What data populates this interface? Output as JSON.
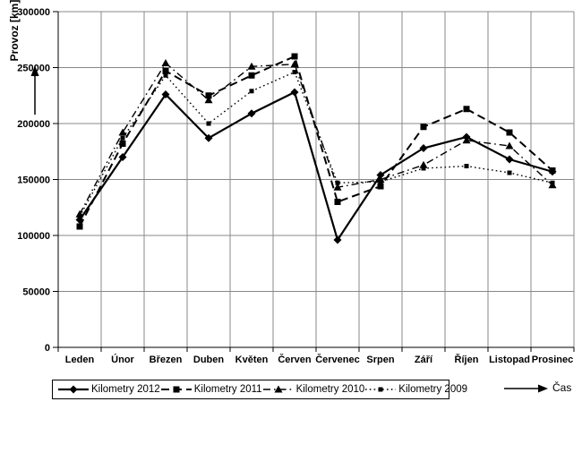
{
  "y_axis": {
    "label": "Provoz [km]"
  },
  "x_axis": {
    "label": "Čas"
  },
  "chart_data": {
    "type": "line",
    "title": "",
    "xlabel": "Čas",
    "ylabel": "Provoz [km]",
    "ylim": [
      0,
      300000
    ],
    "ytick_step": 50000,
    "grid": true,
    "legend_position": "bottom",
    "categories": [
      "Leden",
      "Únor",
      "Březen",
      "Duben",
      "Květen",
      "Červen",
      "Červenec",
      "Srpen",
      "Září",
      "Říjen",
      "Listopad",
      "Prosinec"
    ],
    "series": [
      {
        "name": "Kilometry 2012",
        "marker": "diamond",
        "line": "solid",
        "values": [
          114000,
          170000,
          226000,
          187000,
          209000,
          228000,
          96000,
          154000,
          178000,
          188000,
          168000,
          157000
        ]
      },
      {
        "name": "Kilometry 2011",
        "marker": "square",
        "line": "dashed",
        "values": [
          108000,
          182000,
          247000,
          225000,
          243000,
          260000,
          130000,
          144000,
          197000,
          213000,
          192000,
          158000
        ]
      },
      {
        "name": "Kilometry 2010",
        "marker": "triangle",
        "line": "dashdot",
        "values": [
          119000,
          192000,
          254000,
          221000,
          251000,
          253000,
          143000,
          150000,
          163000,
          185000,
          180000,
          145000
        ]
      },
      {
        "name": "Kilometry 2009",
        "marker": "square-small",
        "line": "dotted",
        "values": [
          117000,
          187000,
          243000,
          200000,
          229000,
          246000,
          147000,
          148000,
          160000,
          162000,
          156000,
          147000
        ]
      }
    ],
    "colors": {
      "line": "#000000",
      "grid": "#888888",
      "background": "#ffffff"
    }
  }
}
